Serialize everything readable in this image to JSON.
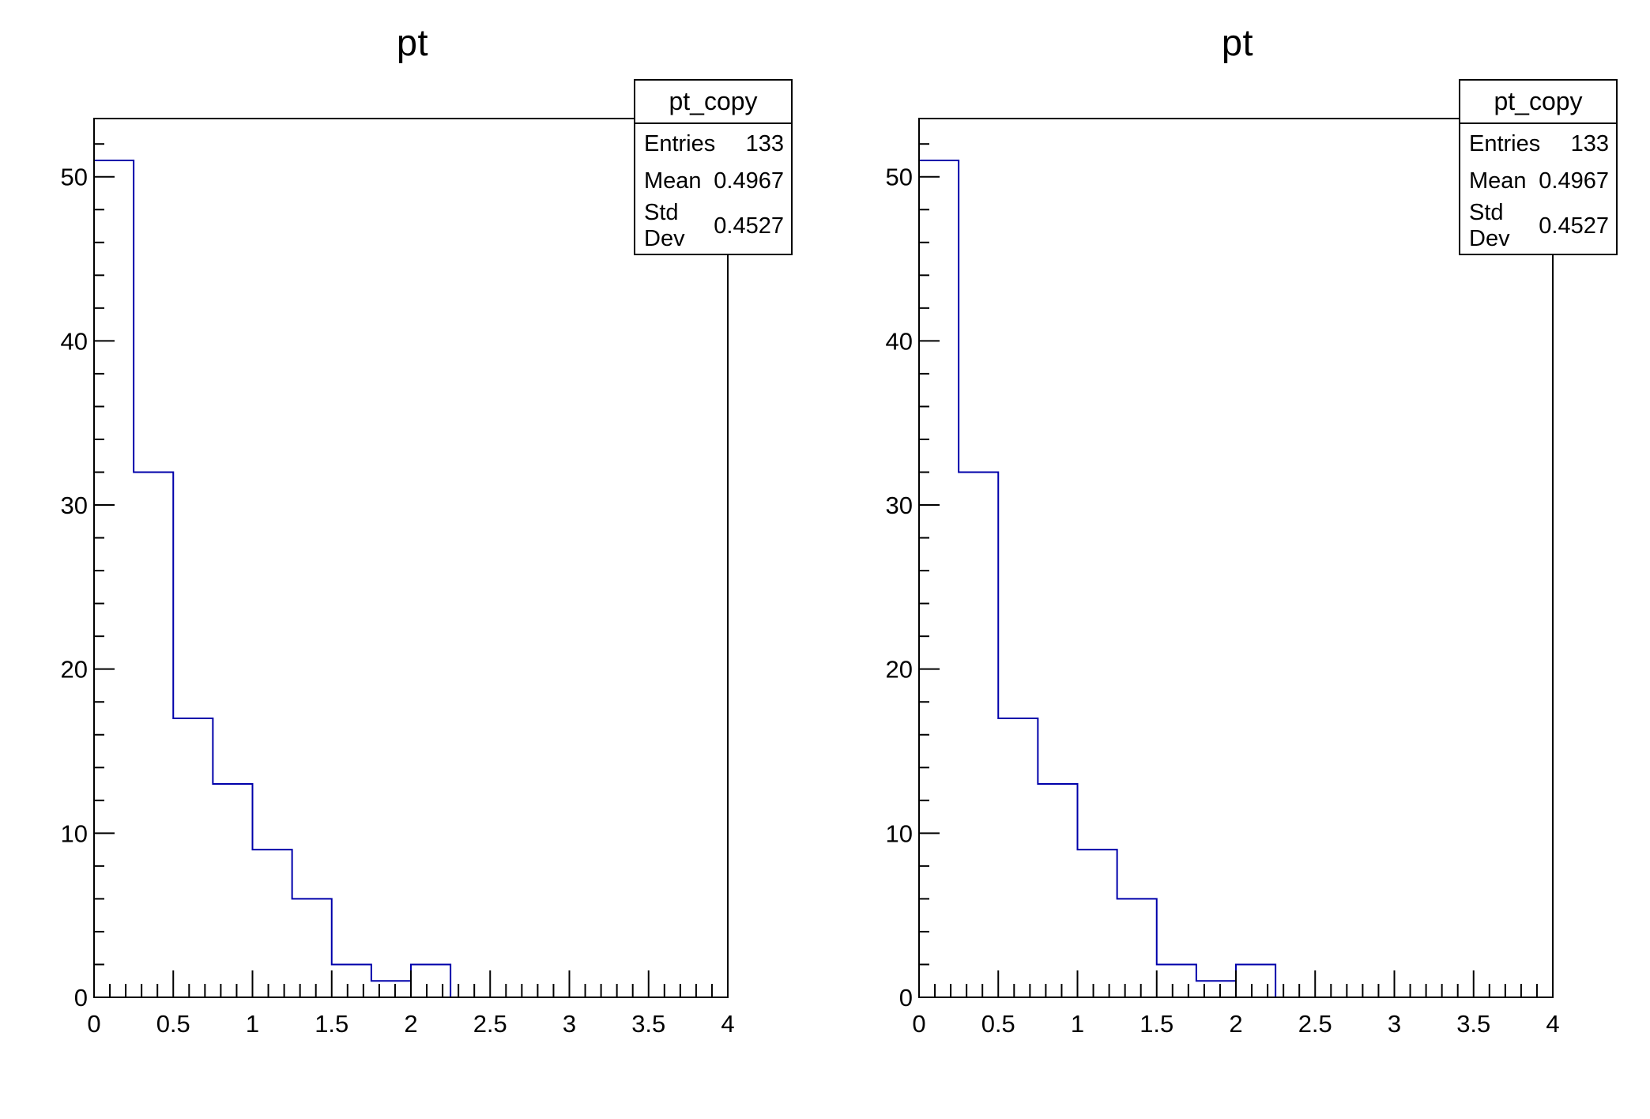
{
  "canvas": {
    "background_color": "#ffffff",
    "frame_color": "#000000",
    "pad_count": 2
  },
  "chart_data": [
    {
      "type": "histogram-step",
      "title": "pt",
      "hist_name": "pt_copy",
      "line_color": "#0000aa",
      "bin_edges": [
        0,
        0.25,
        0.5,
        0.75,
        1.0,
        1.25,
        1.5,
        1.75,
        2.0,
        2.25,
        2.5,
        2.75,
        3.0,
        3.25,
        3.5,
        3.75,
        4.0
      ],
      "counts": [
        51,
        32,
        17,
        13,
        9,
        6,
        2,
        1,
        2,
        0,
        0,
        0,
        0,
        0,
        0,
        0
      ],
      "xlim": [
        0,
        4
      ],
      "ylim": [
        0,
        53.55
      ],
      "x_major_step": 0.5,
      "x_minor_step": 0.1,
      "y_major_step": 10,
      "y_minor_step": 2,
      "x_tick_labels": [
        "0",
        "0.5",
        "1",
        "1.5",
        "2",
        "2.5",
        "3",
        "3.5",
        "4"
      ],
      "y_tick_labels": [
        "0",
        "10",
        "20",
        "30",
        "40",
        "50"
      ],
      "grid": false,
      "legend_position": "none",
      "stats": {
        "header": "pt_copy",
        "rows": [
          {
            "label": "Entries",
            "value": "133"
          },
          {
            "label": "Mean",
            "value": "0.4967"
          },
          {
            "label": "Std Dev",
            "value": "0.4527"
          }
        ]
      }
    },
    {
      "type": "histogram-step",
      "title": "pt",
      "hist_name": "pt_copy",
      "line_color": "#0000aa",
      "bin_edges": [
        0,
        0.25,
        0.5,
        0.75,
        1.0,
        1.25,
        1.5,
        1.75,
        2.0,
        2.25,
        2.5,
        2.75,
        3.0,
        3.25,
        3.5,
        3.75,
        4.0
      ],
      "counts": [
        51,
        32,
        17,
        13,
        9,
        6,
        2,
        1,
        2,
        0,
        0,
        0,
        0,
        0,
        0,
        0
      ],
      "xlim": [
        0,
        4
      ],
      "ylim": [
        0,
        53.55
      ],
      "x_major_step": 0.5,
      "x_minor_step": 0.1,
      "y_major_step": 10,
      "y_minor_step": 2,
      "x_tick_labels": [
        "0",
        "0.5",
        "1",
        "1.5",
        "2",
        "2.5",
        "3",
        "3.5",
        "4"
      ],
      "y_tick_labels": [
        "0",
        "10",
        "20",
        "30",
        "40",
        "50"
      ],
      "grid": false,
      "legend_position": "none",
      "stats": {
        "header": "pt_copy",
        "rows": [
          {
            "label": "Entries",
            "value": "133"
          },
          {
            "label": "Mean",
            "value": "0.4967"
          },
          {
            "label": "Std Dev",
            "value": "0.4527"
          }
        ]
      }
    }
  ]
}
